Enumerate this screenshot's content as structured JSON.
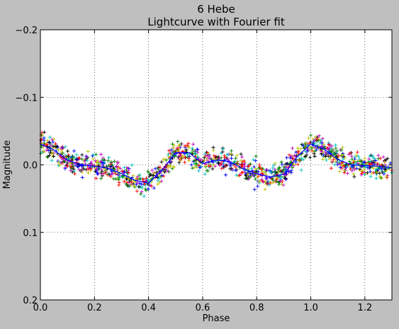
{
  "chart_data": {
    "type": "scatter",
    "title": "6 Hebe",
    "subtitle": "Lightcurve with Fourier fit",
    "xlabel": "Phase",
    "ylabel": "Magnitude",
    "xlim": [
      0.0,
      1.3
    ],
    "ylim": [
      0.2,
      -0.2
    ],
    "y_inverted": true,
    "grid": true,
    "marker": "plus",
    "xticks": [
      "0.0",
      "0.2",
      "0.4",
      "0.6",
      "0.8",
      "1.0",
      "1.2"
    ],
    "xtick_values": [
      0.0,
      0.2,
      0.4,
      0.6,
      0.8,
      1.0,
      1.2
    ],
    "yticks": [
      "−0.2",
      "−0.1",
      "0.0",
      "0.1",
      "0.2"
    ],
    "ytick_values": [
      -0.2,
      -0.1,
      0.0,
      0.1,
      0.2
    ],
    "point_colors": [
      "#000000",
      "#0000ff",
      "#008000",
      "#00bfbf",
      "#ff0000",
      "#bfbf00",
      "#bf00bf"
    ],
    "fit_color": "#0000ff",
    "fit_curve": {
      "x": [
        0.0,
        0.05,
        0.1,
        0.15,
        0.2,
        0.25,
        0.3,
        0.35,
        0.4,
        0.45,
        0.5,
        0.55,
        0.6,
        0.65,
        0.7,
        0.75,
        0.8,
        0.85,
        0.9,
        0.95,
        1.0,
        1.05,
        1.1,
        1.15,
        1.2,
        1.25,
        1.3
      ],
      "y": [
        -0.031,
        -0.022,
        -0.007,
        0.0,
        0.002,
        0.005,
        0.013,
        0.023,
        0.027,
        0.008,
        -0.018,
        -0.018,
        -0.002,
        -0.007,
        -0.005,
        0.006,
        0.013,
        0.018,
        0.014,
        -0.012,
        -0.031,
        -0.023,
        -0.008,
        0.0,
        0.001,
        0.002,
        0.004
      ]
    }
  }
}
